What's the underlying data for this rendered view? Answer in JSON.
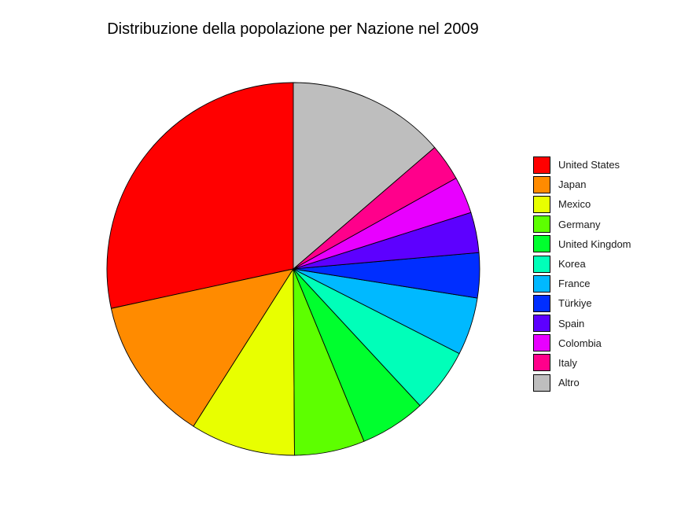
{
  "chart_data": {
    "type": "pie",
    "title": "Distribuzione della popolazione per Nazione nel 2009",
    "categories": [
      "United States",
      "Japan",
      "Mexico",
      "Germany",
      "United Kingdom",
      "Korea",
      "France",
      "Türkiye",
      "Spain",
      "Colombia",
      "Italy",
      "Altro"
    ],
    "values": [
      28.4,
      12.6,
      9.1,
      6.1,
      5.7,
      5.6,
      5.0,
      3.9,
      3.5,
      3.2,
      3.2,
      13.7
    ],
    "unit": "%",
    "colors": [
      "#FF0000",
      "#FF8B00",
      "#E8FF00",
      "#5DFF00",
      "#00FF2E",
      "#00FFB9",
      "#00B9FF",
      "#002EFF",
      "#5D00FF",
      "#E800FF",
      "#FF008B",
      "#BEBEBE"
    ],
    "start_angle_deg": 90,
    "direction": "counterclockwise",
    "legend_position": "right"
  }
}
